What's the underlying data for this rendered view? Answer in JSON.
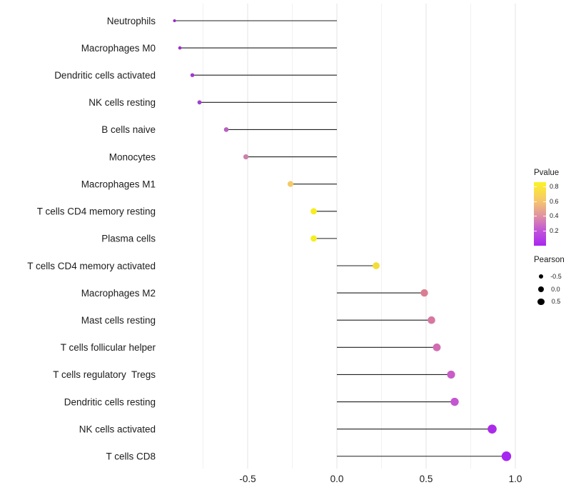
{
  "chart_data": {
    "type": "lollipop",
    "orientation": "horizontal",
    "title": "",
    "xlabel": "",
    "ylabel": "",
    "x_tick_labels": [
      "-0.5",
      "0.0",
      "0.5",
      "1.0"
    ],
    "x_tick_values": [
      -0.5,
      0.0,
      0.5,
      1.0
    ],
    "xlim": [
      -1.0,
      1.05
    ],
    "baseline_x": 0,
    "grid": {
      "vertical_major": [
        -0.5,
        0.0,
        0.5,
        1.0
      ],
      "vertical_minor": [
        -0.75,
        -0.25,
        0.25,
        0.75
      ],
      "horizontal": false
    },
    "categories": [
      "Neutrophils",
      "Macrophages M0",
      "Dendritic cells activated",
      "NK cells resting",
      "B cells naive",
      "Monocytes",
      "Macrophages M1",
      "T cells CD4 memory resting",
      "Plasma cells",
      "T cells CD4 memory activated",
      "Macrophages M2",
      "Mast cells resting",
      "T cells follicular helper",
      "T cells regulatory  Tregs",
      "Dendritic cells resting",
      "NK cells activated",
      "T cells CD8"
    ],
    "points": [
      {
        "label": "Neutrophils",
        "pearson": -0.91,
        "pvalue_est": 0.08,
        "color": "#9B2AC5",
        "radius": 2.0
      },
      {
        "label": "Macrophages M0",
        "pearson": -0.88,
        "pvalue_est": 0.1,
        "color": "#9D2ECB",
        "radius": 2.3
      },
      {
        "label": "Dendritic cells activated",
        "pearson": -0.81,
        "pvalue_est": 0.13,
        "color": "#A236D0",
        "radius": 2.7
      },
      {
        "label": "NK cells resting",
        "pearson": -0.77,
        "pvalue_est": 0.16,
        "color": "#A440C9",
        "radius": 2.9
      },
      {
        "label": "B cells naive",
        "pearson": -0.62,
        "pvalue_est": 0.3,
        "color": "#B960C1",
        "radius": 3.3
      },
      {
        "label": "Monocytes",
        "pearson": -0.51,
        "pvalue_est": 0.42,
        "color": "#CC80AC",
        "radius": 3.6
      },
      {
        "label": "Macrophages M1",
        "pearson": -0.26,
        "pvalue_est": 0.63,
        "color": "#F4CA66",
        "radius": 4.1
      },
      {
        "label": "T cells CD4 memory resting",
        "pearson": -0.13,
        "pvalue_est": 0.8,
        "color": "#F7ED1F",
        "radius": 4.4
      },
      {
        "label": "Plasma cells",
        "pearson": -0.13,
        "pvalue_est": 0.8,
        "color": "#F7ED1F",
        "radius": 4.4
      },
      {
        "label": "T cells CD4 memory activated",
        "pearson": 0.22,
        "pvalue_est": 0.73,
        "color": "#F3DE38",
        "radius": 4.9
      },
      {
        "label": "Macrophages M2",
        "pearson": 0.49,
        "pvalue_est": 0.45,
        "color": "#D97E92",
        "radius": 5.2
      },
      {
        "label": "Mast cells resting",
        "pearson": 0.53,
        "pvalue_est": 0.43,
        "color": "#D678A1",
        "radius": 5.3
      },
      {
        "label": "T cells follicular helper",
        "pearson": 0.56,
        "pvalue_est": 0.38,
        "color": "#D16CB2",
        "radius": 5.4
      },
      {
        "label": "T cells regulatory  Tregs",
        "pearson": 0.64,
        "pvalue_est": 0.3,
        "color": "#C95CC7",
        "radius": 5.6
      },
      {
        "label": "Dendritic cells resting",
        "pearson": 0.66,
        "pvalue_est": 0.28,
        "color": "#C456D1",
        "radius": 5.7
      },
      {
        "label": "NK cells activated",
        "pearson": 0.87,
        "pvalue_est": 0.1,
        "color": "#AB2BEA",
        "radius": 6.3
      },
      {
        "label": "T cells CD8",
        "pearson": 0.95,
        "pvalue_est": 0.05,
        "color": "#A626F2",
        "radius": 6.7
      }
    ],
    "legend_position": "right"
  },
  "legends": {
    "pvalue": {
      "title": "Pvalue",
      "range": [
        0.0,
        0.865
      ],
      "tick_values": [
        0.8,
        0.6,
        0.4,
        0.2
      ],
      "tick_labels": [
        "0.8",
        "0.6",
        "0.4",
        "0.2"
      ],
      "gradient_top_to_bottom": [
        "#FBF427",
        "#F6C76B",
        "#E092A2",
        "#C155D8",
        "#A827F0"
      ],
      "gradient_stops_pct": [
        0,
        29,
        53,
        76,
        100
      ]
    },
    "pearson": {
      "title": "Pearson",
      "items": [
        {
          "label": "-0.5",
          "radius": 3.2
        },
        {
          "label": "0.0",
          "radius": 4.1
        },
        {
          "label": "0.5",
          "radius": 4.7
        }
      ],
      "dot_color": "#000000"
    }
  },
  "colors": {
    "background": "#ffffff",
    "segment": "#1f1f1f",
    "grid_major": "#e3e3e3",
    "grid_minor": "#f1f1f1",
    "text": "#1c1c1c"
  }
}
